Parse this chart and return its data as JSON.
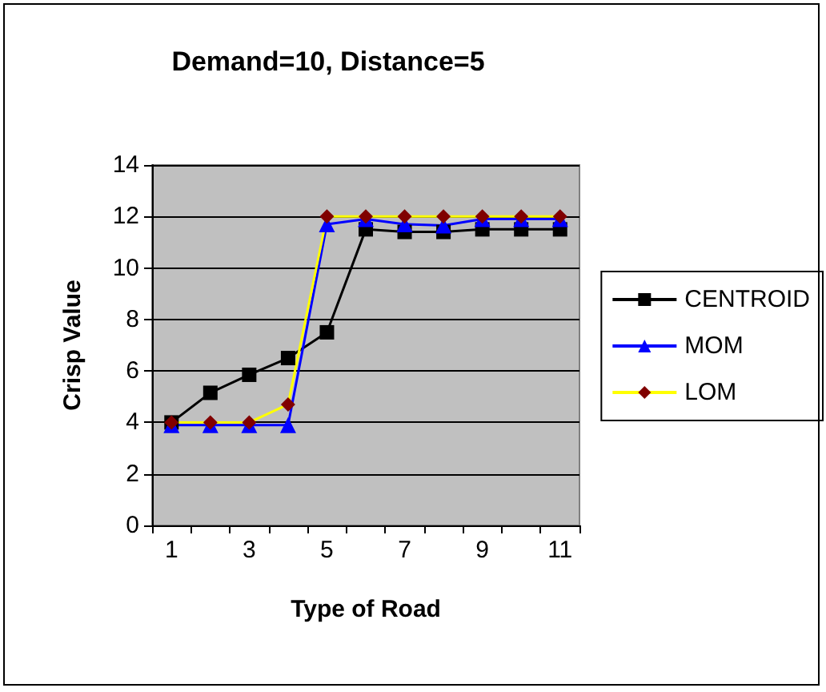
{
  "chart_data": {
    "type": "line",
    "title": "Demand=10, Distance=5",
    "xlabel": "Type of Road",
    "ylabel": "Crisp Value",
    "categories": [
      "1",
      null,
      "3",
      null,
      "5",
      null,
      "7",
      null,
      "9",
      null,
      "11"
    ],
    "series": [
      {
        "name": "CENTROID",
        "color": "#000000",
        "marker": "square",
        "values": [
          4.0,
          5.15,
          5.85,
          6.5,
          7.5,
          11.5,
          11.4,
          11.4,
          11.5,
          11.5,
          11.5
        ]
      },
      {
        "name": "MOM",
        "color": "#0000ff",
        "marker": "triangle",
        "values": [
          3.9,
          3.9,
          3.9,
          3.9,
          11.7,
          11.9,
          11.7,
          11.65,
          11.9,
          11.9,
          11.9
        ]
      },
      {
        "name": "LOM",
        "color": "#ffff00",
        "colors": [
          "#800000",
          "#800000",
          "#800000",
          "#800000",
          "#800000",
          "#800000",
          "#800000",
          "#800000",
          "#800000",
          "#800000",
          "#800000"
        ],
        "marker": "diamond",
        "values": [
          4,
          4,
          4,
          4.7,
          12,
          12,
          12,
          12,
          12,
          12,
          12
        ]
      }
    ],
    "ylim": [
      0,
      14
    ],
    "yticks": [
      0,
      2,
      4,
      6,
      8,
      10,
      12,
      14
    ],
    "grid": "y",
    "legend": "right"
  }
}
